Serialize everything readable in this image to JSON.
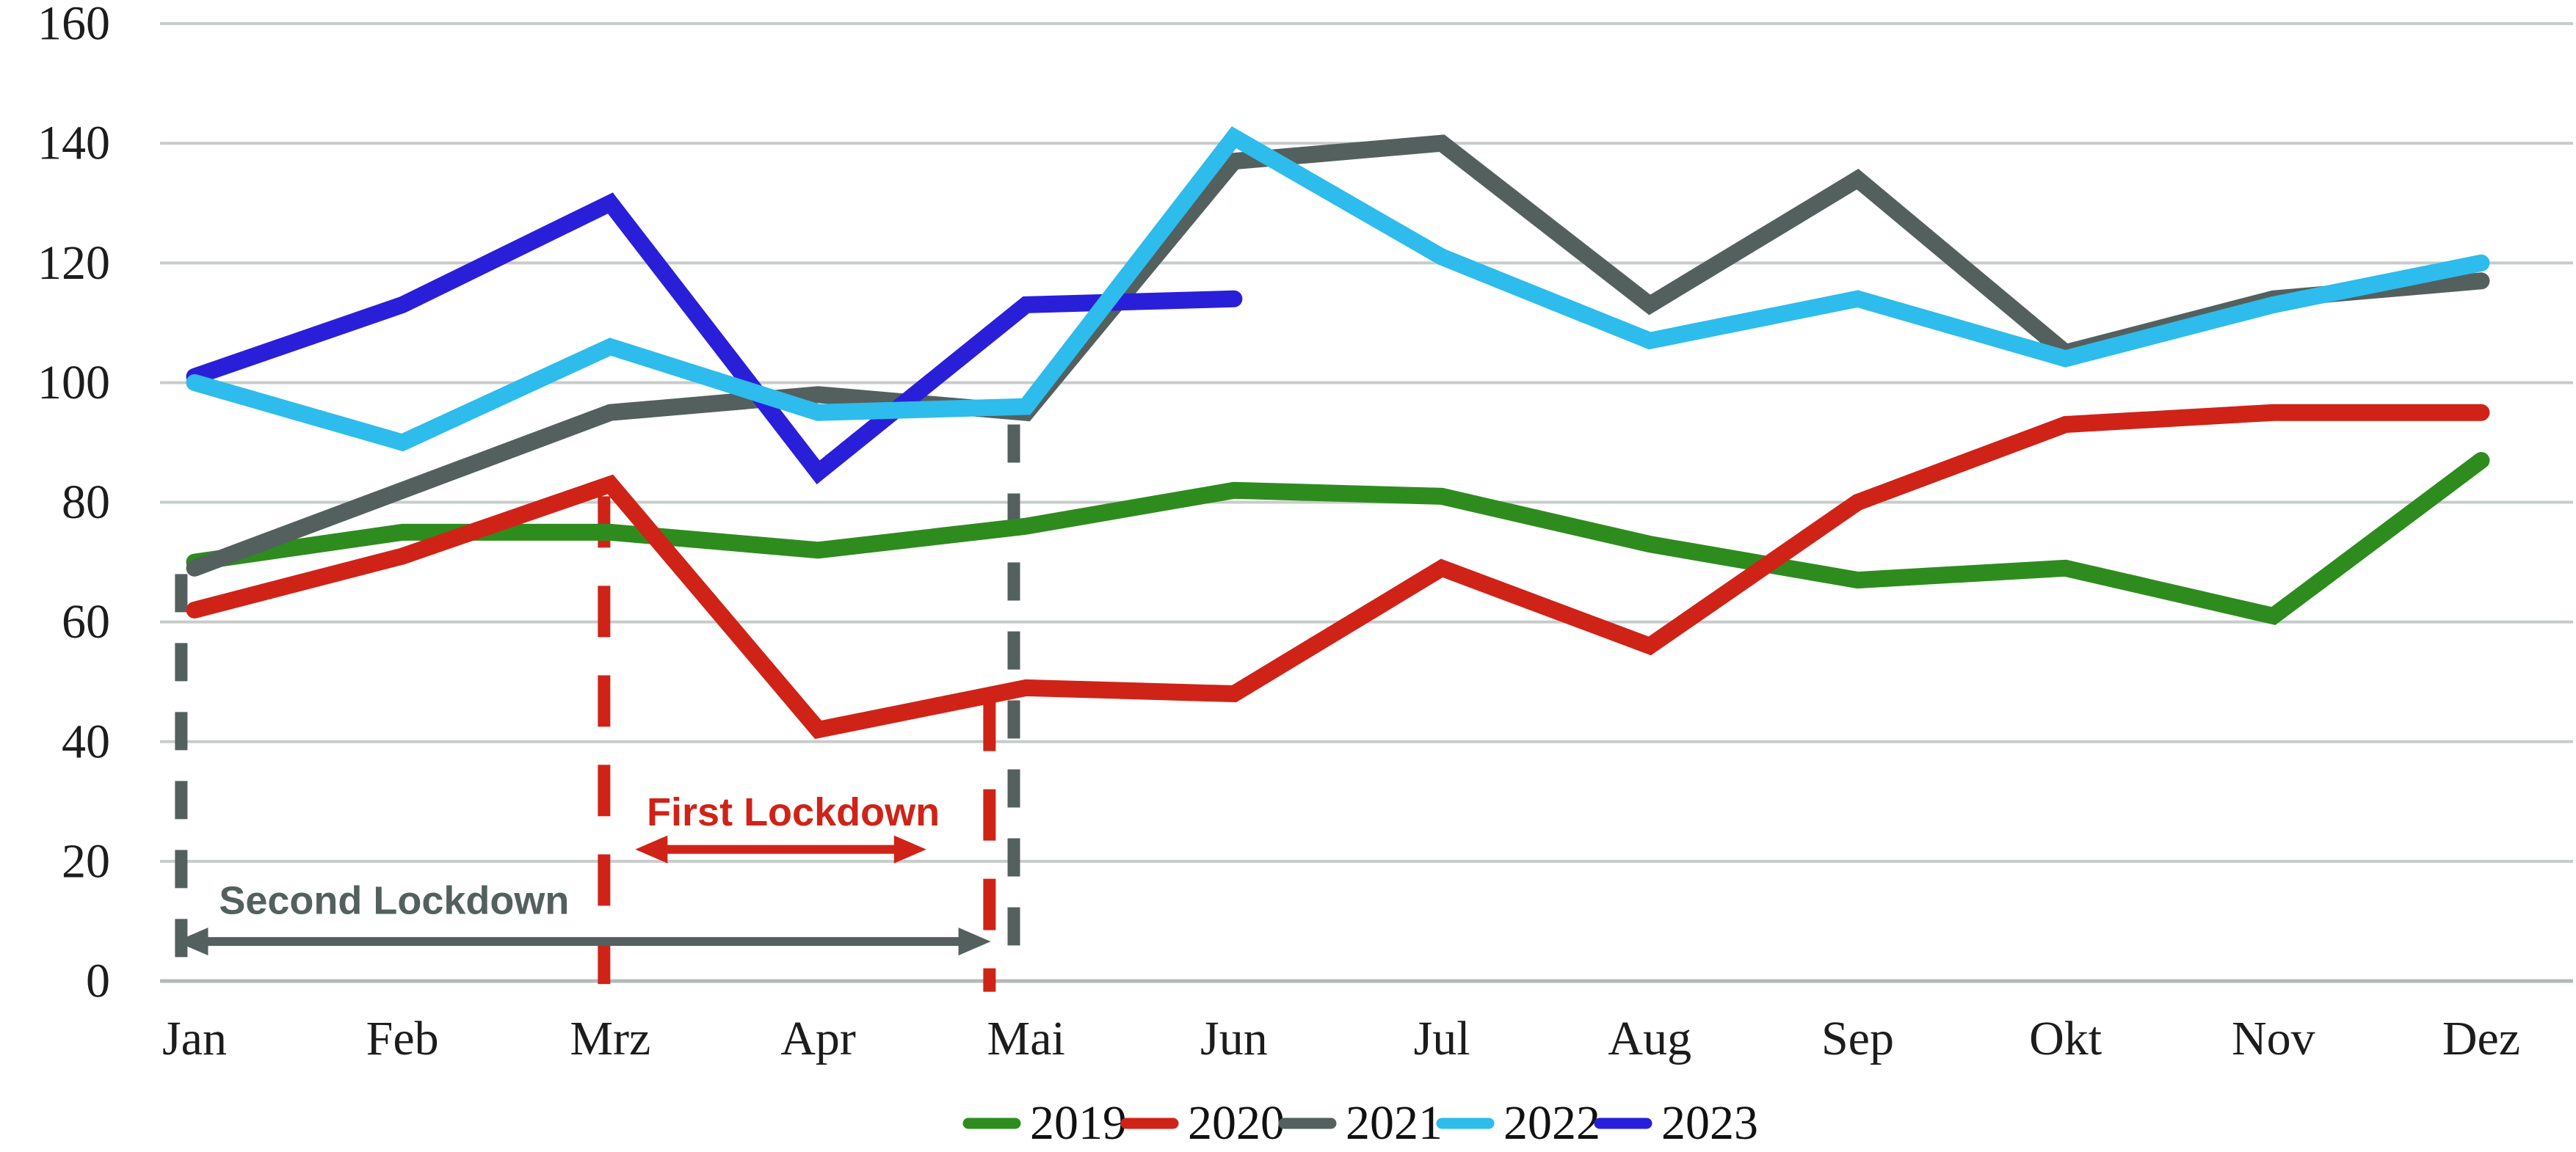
{
  "chart_data": {
    "type": "line",
    "categories": [
      "Jan",
      "Feb",
      "Mrz",
      "Apr",
      "Mai",
      "Jun",
      "Jul",
      "Aug",
      "Sep",
      "Okt",
      "Nov",
      "Dez"
    ],
    "ylim": [
      0,
      160
    ],
    "ytick_step": 20,
    "grid": "horizontal",
    "legend_position": "bottom-center",
    "series": [
      {
        "name": "2019",
        "color": "#2e8c1e",
        "values": [
          70,
          75,
          75,
          72,
          76,
          82,
          81,
          73,
          67,
          69,
          61,
          87
        ]
      },
      {
        "name": "2020",
        "color": "#cf2318",
        "values": [
          62,
          71,
          83,
          42,
          49,
          48,
          69,
          56,
          80,
          93,
          95,
          95
        ]
      },
      {
        "name": "2021",
        "color": "#53605e",
        "values": [
          69,
          82,
          95,
          98,
          95,
          137,
          140,
          113,
          134,
          105,
          114,
          117
        ]
      },
      {
        "name": "2022",
        "color": "#2dbcec",
        "values": [
          100,
          90,
          106,
          95,
          96,
          141,
          121,
          107,
          114,
          104,
          113,
          120
        ]
      },
      {
        "name": "2023",
        "color": "#2a1fd9",
        "values": [
          101,
          113,
          130,
          85,
          113,
          114
        ]
      }
    ],
    "z_order": [
      "2019",
      "2020",
      "2021",
      "2023",
      "2022"
    ],
    "annotations": {
      "first_lockdown": {
        "label": "First Lockdown",
        "color": "#cf2318",
        "label_month": 2.88,
        "label_baseline_value": 26.0,
        "arrow": {
          "from_month": 2.12,
          "to_month": 3.52,
          "value": 22.0
        }
      },
      "second_lockdown": {
        "label": "Second Lockdown",
        "color": "#53605e",
        "label_month": 0.96,
        "label_baseline_value": 11.2,
        "arrow": {
          "from_month": -0.09,
          "to_month": 3.83,
          "value": 6.6
        }
      },
      "dashed_lines": [
        {
          "id": "second-lockdown-start",
          "color": "#53605e",
          "month": -0.064,
          "from_value": 68,
          "to_value": -1.0,
          "dash": [
            52,
            42
          ]
        },
        {
          "id": "first-lockdown-start",
          "color": "#cf2318",
          "month": 1.97,
          "from_value": 81,
          "to_value": -0.5,
          "dash": [
            70,
            52
          ]
        },
        {
          "id": "first-lockdown-end",
          "color": "#cf2318",
          "month": 3.824,
          "from_value": 47,
          "to_value": -1.8,
          "dash": [
            70,
            52
          ]
        },
        {
          "id": "second-lockdown-end",
          "color": "#53605e",
          "month": 3.941,
          "from_value": 93,
          "to_value": 3.8,
          "dash": [
            52,
            42
          ]
        }
      ]
    },
    "axis": {
      "grid_color": "#c7cccb",
      "baseline_color": "#b3b9b8",
      "label_color": "#1c1c1c"
    }
  }
}
